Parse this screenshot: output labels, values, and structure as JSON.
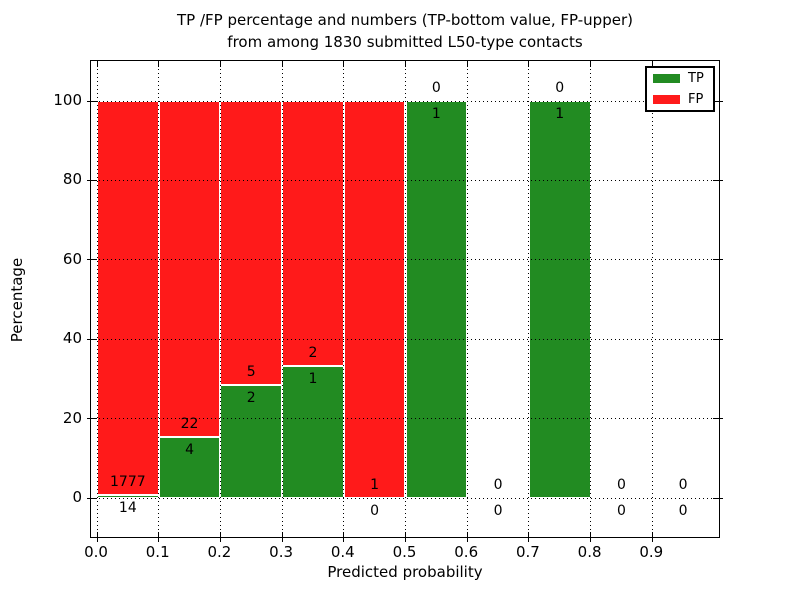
{
  "chart_data": {
    "type": "bar",
    "stacked": true,
    "title_line1": "TP /FP percentage and numbers (TP-bottom value, FP-upper)",
    "title_line2": "from among 1830 submitted L50-type contacts",
    "xlabel": "Predicted probability",
    "ylabel": "Percentage",
    "total_contacts": 1830,
    "x_tick_labels": [
      "0.0",
      "0.1",
      "0.2",
      "0.3",
      "0.4",
      "0.5",
      "0.6",
      "0.7",
      "0.8",
      "0.9"
    ],
    "y_tick_values": [
      0,
      20,
      40,
      60,
      80,
      100
    ],
    "ylim": [
      0,
      100
    ],
    "ylim_display": [
      -10.3,
      109.6
    ],
    "xlim_display": [
      -0.01,
      1.01
    ],
    "bin_width": 0.1,
    "bin_starts": [
      0.0,
      0.1,
      0.2,
      0.3,
      0.4,
      0.5,
      0.6,
      0.7,
      0.8,
      0.9
    ],
    "grid": {
      "enabled": true,
      "style": "dotted",
      "color": "#000000"
    },
    "series": [
      {
        "name": "TP",
        "color": "#228b22",
        "values": [
          14,
          4,
          2,
          1,
          0,
          1,
          0,
          1,
          0,
          0
        ]
      },
      {
        "name": "FP",
        "color": "#ff1a1a",
        "values": [
          1777,
          22,
          5,
          2,
          1,
          0,
          0,
          0,
          0,
          0
        ]
      }
    ],
    "tp_percent_of_bin": [
      0.78,
      15.38,
      28.57,
      33.33,
      0.0,
      100.0,
      0.0,
      100.0,
      0.0,
      0.0
    ],
    "legend": {
      "position": "upper-right",
      "entries": [
        {
          "label": "TP",
          "color": "#228b22"
        },
        {
          "label": "FP",
          "color": "#ff1a1a"
        }
      ]
    }
  }
}
